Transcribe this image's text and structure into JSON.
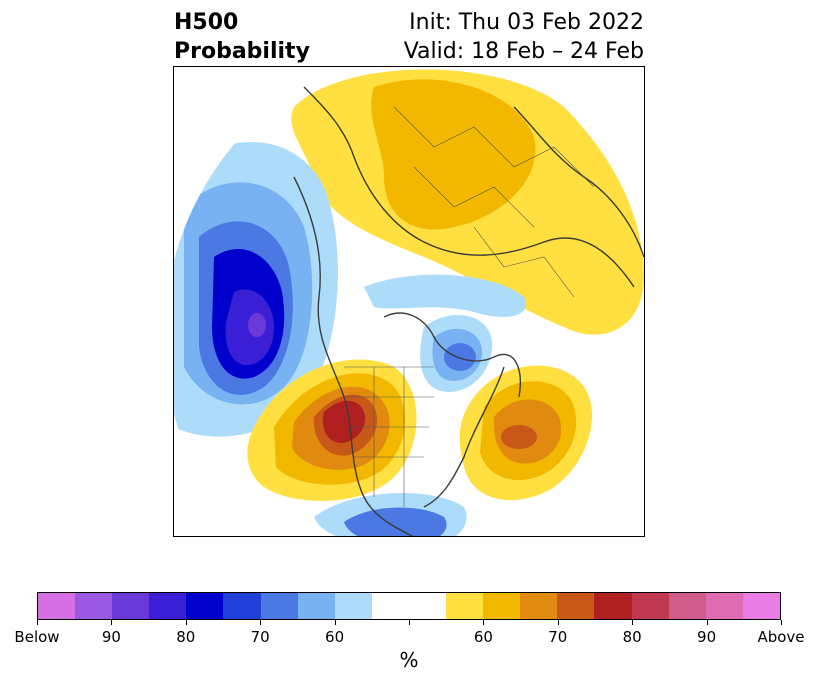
{
  "title": {
    "left_line1": "H500",
    "left_line2": "Probability",
    "right_line1": "Init: Thu 03 Feb 2022",
    "right_line2": "Valid: 18 Feb – 24 Feb"
  },
  "colorbar": {
    "units": "%",
    "colors": [
      "#d66fe6",
      "#9b58e0",
      "#6a3ad8",
      "#3a1fd6",
      "#0000cc",
      "#2140d8",
      "#4b78e3",
      "#78b2f2",
      "#addcfa",
      "#ffffff",
      "#ffffff",
      "#ffe040",
      "#f2b800",
      "#e08a10",
      "#c85818",
      "#b02020",
      "#c03850",
      "#d05a8a",
      "#e06cb4",
      "#e87de6"
    ],
    "ticks": [
      "Below",
      "90",
      "80",
      "70",
      "60",
      "",
      "60",
      "70",
      "80",
      "90",
      "Above"
    ]
  },
  "map": {
    "description_colors": {
      "below": "#0000cc",
      "near_below": "#addcfa",
      "above": "#f2b800",
      "strong_above": "#b02020"
    }
  }
}
